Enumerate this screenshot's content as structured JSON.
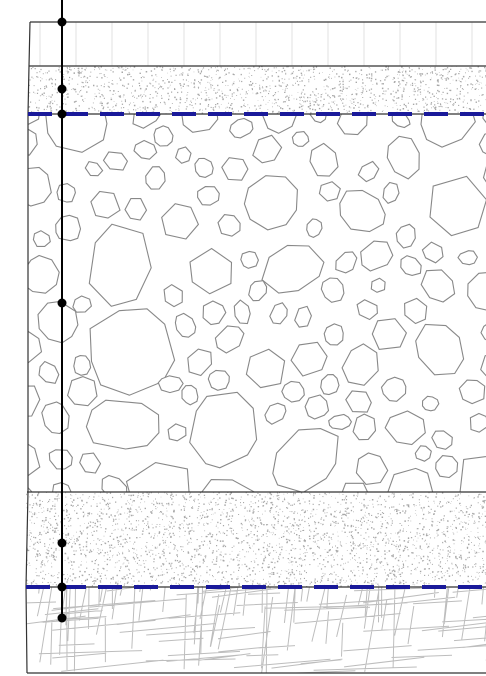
{
  "diagram": {
    "colors": {
      "outline": "#333333",
      "stroke": "#888888",
      "hatch": "#bdbdbd",
      "water_line": "#1a1a9a",
      "speckle": "#a8a8a8",
      "marker": "#000000"
    },
    "layers": [
      {
        "name": "top-layer",
        "pattern": "grid"
      },
      {
        "name": "sand-layer-upper",
        "pattern": "speckle"
      },
      {
        "name": "gravel-layer",
        "pattern": "cobbles"
      },
      {
        "name": "sand-layer-lower",
        "pattern": "speckle"
      },
      {
        "name": "bedrock-layer",
        "pattern": "crosshatch"
      }
    ],
    "water_lines": [
      {
        "name": "water-line-upper",
        "style": "dashed"
      },
      {
        "name": "water-line-lower",
        "style": "dashed"
      }
    ],
    "borehole": {
      "markers": [
        {
          "name": "marker-top"
        },
        {
          "name": "marker-upper-sand"
        },
        {
          "name": "marker-water-upper"
        },
        {
          "name": "marker-gravel"
        },
        {
          "name": "marker-lower-sand"
        },
        {
          "name": "marker-water-lower"
        },
        {
          "name": "marker-bedrock"
        }
      ]
    }
  }
}
